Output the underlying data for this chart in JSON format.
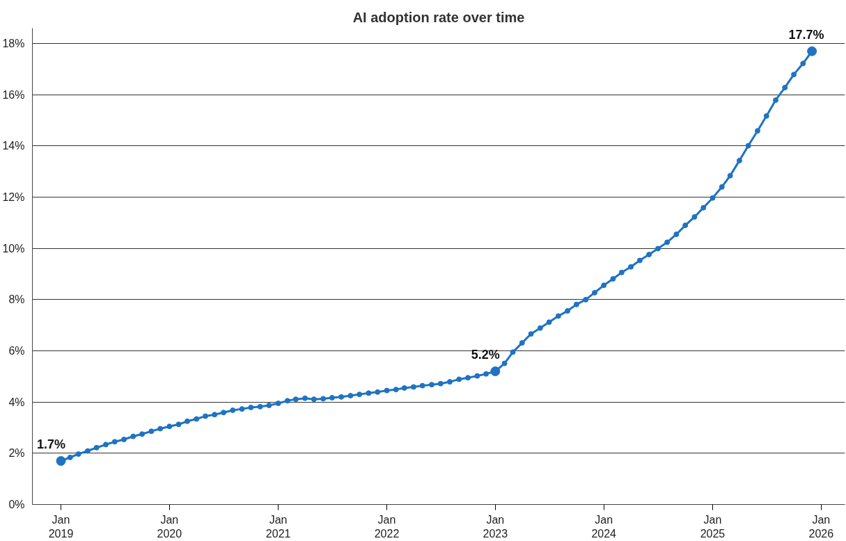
{
  "chart_data": {
    "type": "line",
    "title": "AI adoption rate over time",
    "x": [
      "2019-01",
      "2019-02",
      "2019-03",
      "2019-04",
      "2019-05",
      "2019-06",
      "2019-07",
      "2019-08",
      "2019-09",
      "2019-10",
      "2019-11",
      "2019-12",
      "2020-01",
      "2020-02",
      "2020-03",
      "2020-04",
      "2020-05",
      "2020-06",
      "2020-07",
      "2020-08",
      "2020-09",
      "2020-10",
      "2020-11",
      "2020-12",
      "2021-01",
      "2021-02",
      "2021-03",
      "2021-04",
      "2021-05",
      "2021-06",
      "2021-07",
      "2021-08",
      "2021-09",
      "2021-10",
      "2021-11",
      "2021-12",
      "2022-01",
      "2022-02",
      "2022-03",
      "2022-04",
      "2022-05",
      "2022-06",
      "2022-07",
      "2022-08",
      "2022-09",
      "2022-10",
      "2022-11",
      "2022-12",
      "2023-01",
      "2023-02",
      "2023-03",
      "2023-04",
      "2023-05",
      "2023-06",
      "2023-07",
      "2023-08",
      "2023-09",
      "2023-10",
      "2023-11",
      "2023-12",
      "2024-01",
      "2024-02",
      "2024-03",
      "2024-04",
      "2024-05",
      "2024-06",
      "2024-07",
      "2024-08",
      "2024-09",
      "2024-10",
      "2024-11",
      "2024-12",
      "2025-01",
      "2025-02",
      "2025-03",
      "2025-04",
      "2025-05",
      "2025-06",
      "2025-07",
      "2025-08",
      "2025-09",
      "2025-10",
      "2025-11",
      "2025-12"
    ],
    "series": [
      {
        "color": "#1f73c2",
        "values": [
          1.7,
          1.84,
          1.97,
          2.09,
          2.22,
          2.34,
          2.45,
          2.54,
          2.66,
          2.75,
          2.86,
          2.96,
          3.05,
          3.13,
          3.25,
          3.34,
          3.45,
          3.51,
          3.59,
          3.68,
          3.73,
          3.79,
          3.82,
          3.87,
          3.95,
          4.05,
          4.11,
          4.15,
          4.11,
          4.13,
          4.17,
          4.2,
          4.25,
          4.3,
          4.35,
          4.39,
          4.45,
          4.49,
          4.55,
          4.59,
          4.64,
          4.68,
          4.72,
          4.79,
          4.89,
          4.95,
          5.02,
          5.1,
          5.2,
          5.51,
          5.95,
          6.31,
          6.66,
          6.89,
          7.12,
          7.36,
          7.56,
          7.81,
          8.0,
          8.27,
          8.56,
          8.81,
          9.06,
          9.28,
          9.53,
          9.76,
          9.99,
          10.24,
          10.55,
          10.9,
          11.23,
          11.59,
          11.97,
          12.4,
          12.84,
          13.43,
          14.01,
          14.59,
          15.17,
          15.79,
          16.28,
          16.79,
          17.22,
          17.7
        ]
      }
    ],
    "marker": "circle",
    "line_style": "solid",
    "xlim": [
      "2018-09-27",
      "2026-03-22"
    ],
    "xticks": [
      {
        "value": "2019-01",
        "label": "Jan\n2019"
      },
      {
        "value": "2020-01",
        "label": "Jan\n2020"
      },
      {
        "value": "2021-01",
        "label": "Jan\n2021"
      },
      {
        "value": "2022-01",
        "label": "Jan\n2022"
      },
      {
        "value": "2023-01",
        "label": "Jan\n2023"
      },
      {
        "value": "2024-01",
        "label": "Jan\n2024"
      },
      {
        "value": "2025-01",
        "label": "Jan\n2025"
      },
      {
        "value": "2026-01",
        "label": "Jan\n2026"
      }
    ],
    "ylim": [
      0,
      18.6
    ],
    "yticks": [
      {
        "value": 0,
        "label": "0%"
      },
      {
        "value": 2,
        "label": "2%"
      },
      {
        "value": 4,
        "label": "4%"
      },
      {
        "value": 6,
        "label": "6%"
      },
      {
        "value": 8,
        "label": "8%"
      },
      {
        "value": 10,
        "label": "10%"
      },
      {
        "value": 12,
        "label": "12%"
      },
      {
        "value": 14,
        "label": "14%"
      },
      {
        "value": 16,
        "label": "16%"
      },
      {
        "value": 18,
        "label": "18%"
      }
    ],
    "grid": "y",
    "annotations": [
      {
        "text": "1.7%",
        "x": "2019-01",
        "y": 1.7
      },
      {
        "text": "5.2%",
        "x": "2023-01",
        "y": 5.2
      },
      {
        "text": "17.7%",
        "x": "2025-12",
        "y": 17.7
      }
    ]
  }
}
